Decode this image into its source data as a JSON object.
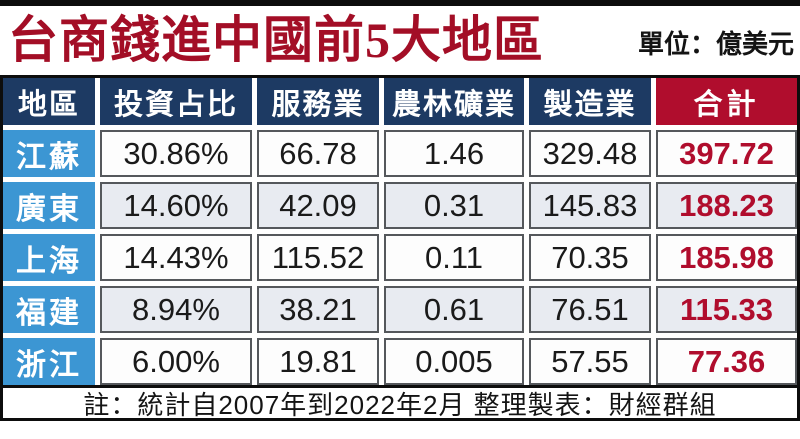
{
  "title": "台商錢進中國前5大地區",
  "unit_label": "單位：億美元",
  "note": "註：統計自2007年到2022年2月  整理製表：財經群組",
  "colors": {
    "title_red": "#a30e26",
    "header_navy": "#1d3a63",
    "accent_red": "#b00d2d",
    "region_blue": "#3c96d3",
    "alt_row": "#e8ebf1",
    "frame_black": "#0d0d0d"
  },
  "chart_data": {
    "type": "table",
    "title": "台商錢進中國前5大地區",
    "unit": "億美元",
    "columns": [
      "地區",
      "投資占比",
      "服務業",
      "農林礦業",
      "製造業",
      "合計"
    ],
    "rows": [
      [
        "江蘇",
        "30.86%",
        "66.78",
        "1.46",
        "329.48",
        "397.72"
      ],
      [
        "廣東",
        "14.60%",
        "42.09",
        "0.31",
        "145.83",
        "188.23"
      ],
      [
        "上海",
        "14.43%",
        "115.52",
        "0.11",
        "70.35",
        "185.98"
      ],
      [
        "福建",
        "8.94%",
        "38.21",
        "0.61",
        "76.51",
        "115.33"
      ],
      [
        "浙江",
        "6.00%",
        "19.81",
        "0.005",
        "57.55",
        "77.36"
      ]
    ],
    "note": "註：統計自2007年到2022年2月  整理製表：財經群組"
  }
}
